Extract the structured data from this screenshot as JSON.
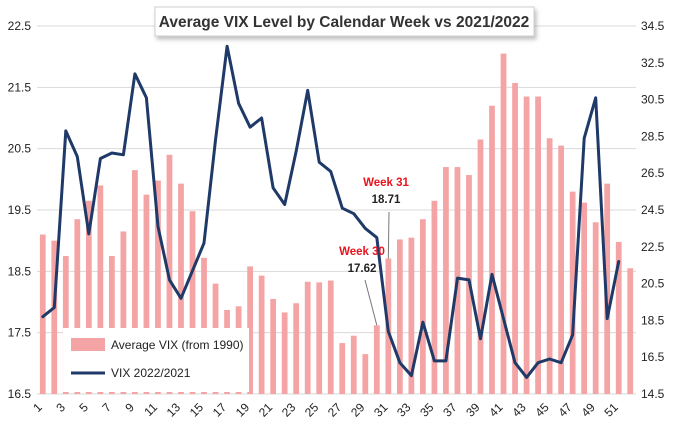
{
  "chart_data": {
    "type": "bar+line",
    "title": "Average VIX Level by Calendar Week vs 2021/2022",
    "categories": [
      1,
      2,
      3,
      4,
      5,
      6,
      7,
      8,
      9,
      10,
      11,
      12,
      13,
      14,
      15,
      16,
      17,
      18,
      19,
      20,
      21,
      22,
      23,
      24,
      25,
      26,
      27,
      28,
      29,
      30,
      31,
      32,
      33,
      34,
      35,
      36,
      37,
      38,
      39,
      40,
      41,
      42,
      43,
      44,
      45,
      46,
      47,
      48,
      49,
      50,
      51,
      52
    ],
    "x_tick_labels": [
      "1",
      "3",
      "5",
      "7",
      "9",
      "11",
      "13",
      "15",
      "17",
      "19",
      "21",
      "23",
      "25",
      "27",
      "29",
      "31",
      "33",
      "35",
      "37",
      "39",
      "41",
      "43",
      "45",
      "47",
      "49",
      "51"
    ],
    "y_left": {
      "min": 16.5,
      "max": 22.5,
      "ticks": [
        "16.5",
        "17.5",
        "18.5",
        "19.5",
        "20.5",
        "21.5",
        "22.5"
      ]
    },
    "y_right": {
      "min": 14.5,
      "max": 34.5,
      "ticks": [
        "14.5",
        "16.5",
        "18.5",
        "20.5",
        "22.5",
        "24.5",
        "26.5",
        "28.5",
        "30.5",
        "32.5",
        "34.5"
      ]
    },
    "grid": true,
    "series": [
      {
        "name": "Average VIX (from 1990)",
        "type": "bar",
        "axis": "left",
        "color": "#f4a4a4",
        "values": [
          19.1,
          19.0,
          18.75,
          19.35,
          19.65,
          19.9,
          18.75,
          19.15,
          20.15,
          19.75,
          19.98,
          20.4,
          19.93,
          19.48,
          18.72,
          18.3,
          17.87,
          17.93,
          18.58,
          18.43,
          18.05,
          17.83,
          17.98,
          18.33,
          18.32,
          18.35,
          17.33,
          17.45,
          17.15,
          17.62,
          18.71,
          19.02,
          19.05,
          19.35,
          19.65,
          20.2,
          20.2,
          20.07,
          20.65,
          21.2,
          22.05,
          21.57,
          21.35,
          21.35,
          20.67,
          20.55,
          19.8,
          19.62,
          19.3,
          19.93,
          18.98,
          18.55
        ]
      },
      {
        "name": "VIX 2022/2021",
        "type": "line",
        "axis": "right",
        "color": "#1f3a68",
        "values": [
          18.7,
          19.2,
          28.8,
          27.4,
          23.2,
          27.3,
          27.6,
          27.5,
          31.9,
          30.6,
          23.6,
          20.7,
          19.7,
          21.2,
          22.7,
          28.3,
          33.4,
          30.3,
          29.0,
          29.5,
          25.7,
          24.8,
          27.7,
          31.0,
          27.1,
          26.6,
          24.6,
          24.3,
          23.5,
          23.0,
          17.9,
          16.2,
          15.5,
          18.4,
          16.3,
          16.3,
          20.8,
          20.7,
          17.5,
          21.0,
          18.6,
          16.2,
          15.4,
          16.2,
          16.4,
          16.2,
          17.7,
          28.4,
          30.6,
          18.6,
          21.7,
          null
        ]
      }
    ],
    "annotations": [
      {
        "label": "Week 31",
        "value": "18.71",
        "week": 31,
        "label_color": "#e8141e",
        "value_color": "#222222"
      },
      {
        "label": "Week 30",
        "value": "17.62",
        "week": 30,
        "label_color": "#e8141e",
        "value_color": "#222222"
      }
    ],
    "legend": {
      "position": "bottom-left",
      "entries": [
        "Average VIX (from 1990)",
        "VIX 2022/2021"
      ]
    }
  }
}
